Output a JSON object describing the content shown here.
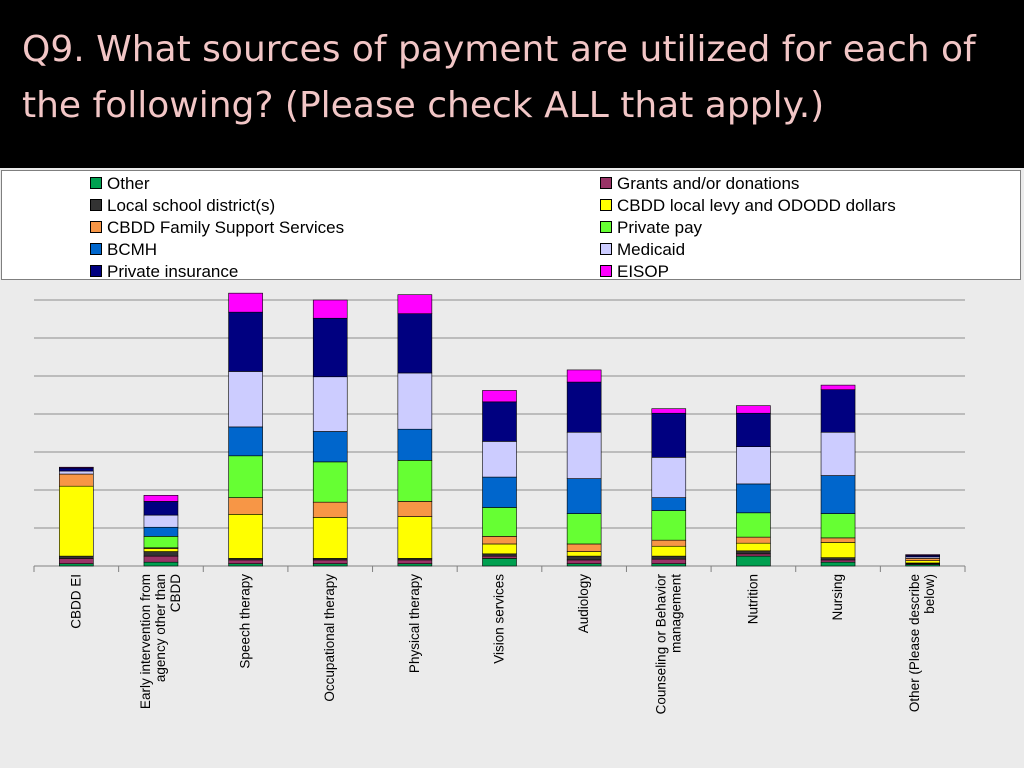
{
  "slide": {
    "title": "Q9. What sources of payment are utilized for each of the following? (Please check ALL that apply.)"
  },
  "chart_data": {
    "type": "bar",
    "stacked": true,
    "grid": true,
    "legend_position": "top",
    "categories": [
      [
        "CBDD EI"
      ],
      [
        "Early intervention from",
        "agency other than",
        "CBDD"
      ],
      [
        "Speech therapy"
      ],
      [
        "Occupational therapy"
      ],
      [
        "Physical therapy"
      ],
      [
        "Vision services"
      ],
      [
        "Audiology"
      ],
      [
        "Counseling or Behavior",
        "management"
      ],
      [
        "Nutrition"
      ],
      [
        "Nursing"
      ],
      [
        "Other (Please describe",
        "below)"
      ]
    ],
    "ylim": [
      0,
      35
    ],
    "series": [
      {
        "name": "Other",
        "color": "#00a050",
        "values": [
          0.3,
          0.5,
          0.3,
          0.3,
          0.3,
          1.0,
          0.3,
          0.3,
          1.3,
          0.5,
          0.2
        ]
      },
      {
        "name": "Grants and/or donations",
        "color": "#993366",
        "values": [
          0.7,
          0.8,
          0.5,
          0.5,
          0.5,
          0.3,
          0.5,
          0.6,
          0.3,
          0.3,
          0.1
        ]
      },
      {
        "name": "Local school district(s)",
        "color": "#333333",
        "values": [
          0.3,
          0.6,
          0.2,
          0.2,
          0.2,
          0.3,
          0.5,
          0.4,
          0.4,
          0.3,
          0.1
        ]
      },
      {
        "name": "CBDD local levy and ODODD dollars",
        "color": "#ffff00",
        "values": [
          9.2,
          0.4,
          5.8,
          5.4,
          5.5,
          1.3,
          0.6,
          1.3,
          1.0,
          2.0,
          0.3
        ]
      },
      {
        "name": "CBDD Family Support Services",
        "color": "#f79646",
        "values": [
          1.6,
          0.1,
          2.2,
          2.0,
          2.0,
          1.0,
          1.0,
          0.8,
          0.8,
          0.6,
          0.3
        ]
      },
      {
        "name": "Private pay",
        "color": "#66ff33",
        "values": [
          0.0,
          1.5,
          5.5,
          5.3,
          5.4,
          3.8,
          4.0,
          3.9,
          3.2,
          3.2,
          0.0
        ]
      },
      {
        "name": "BCMH",
        "color": "#0066cc",
        "values": [
          0.0,
          1.2,
          3.8,
          4.0,
          4.1,
          4.0,
          4.6,
          1.7,
          3.8,
          5.0,
          0.0
        ]
      },
      {
        "name": "Medicaid",
        "color": "#ccccff",
        "values": [
          0.4,
          1.6,
          7.3,
          7.2,
          7.4,
          4.7,
          6.1,
          5.3,
          4.9,
          5.7,
          0.2
        ]
      },
      {
        "name": "Private insurance",
        "color": "#000080",
        "values": [
          0.4,
          1.8,
          7.8,
          7.7,
          7.8,
          5.2,
          6.6,
          5.8,
          4.4,
          5.6,
          0.2
        ]
      },
      {
        "name": "EISOP",
        "color": "#ff00ff",
        "values": [
          0.1,
          0.8,
          2.5,
          2.4,
          2.5,
          1.5,
          1.6,
          0.6,
          1.0,
          0.6,
          0.1
        ]
      }
    ]
  }
}
